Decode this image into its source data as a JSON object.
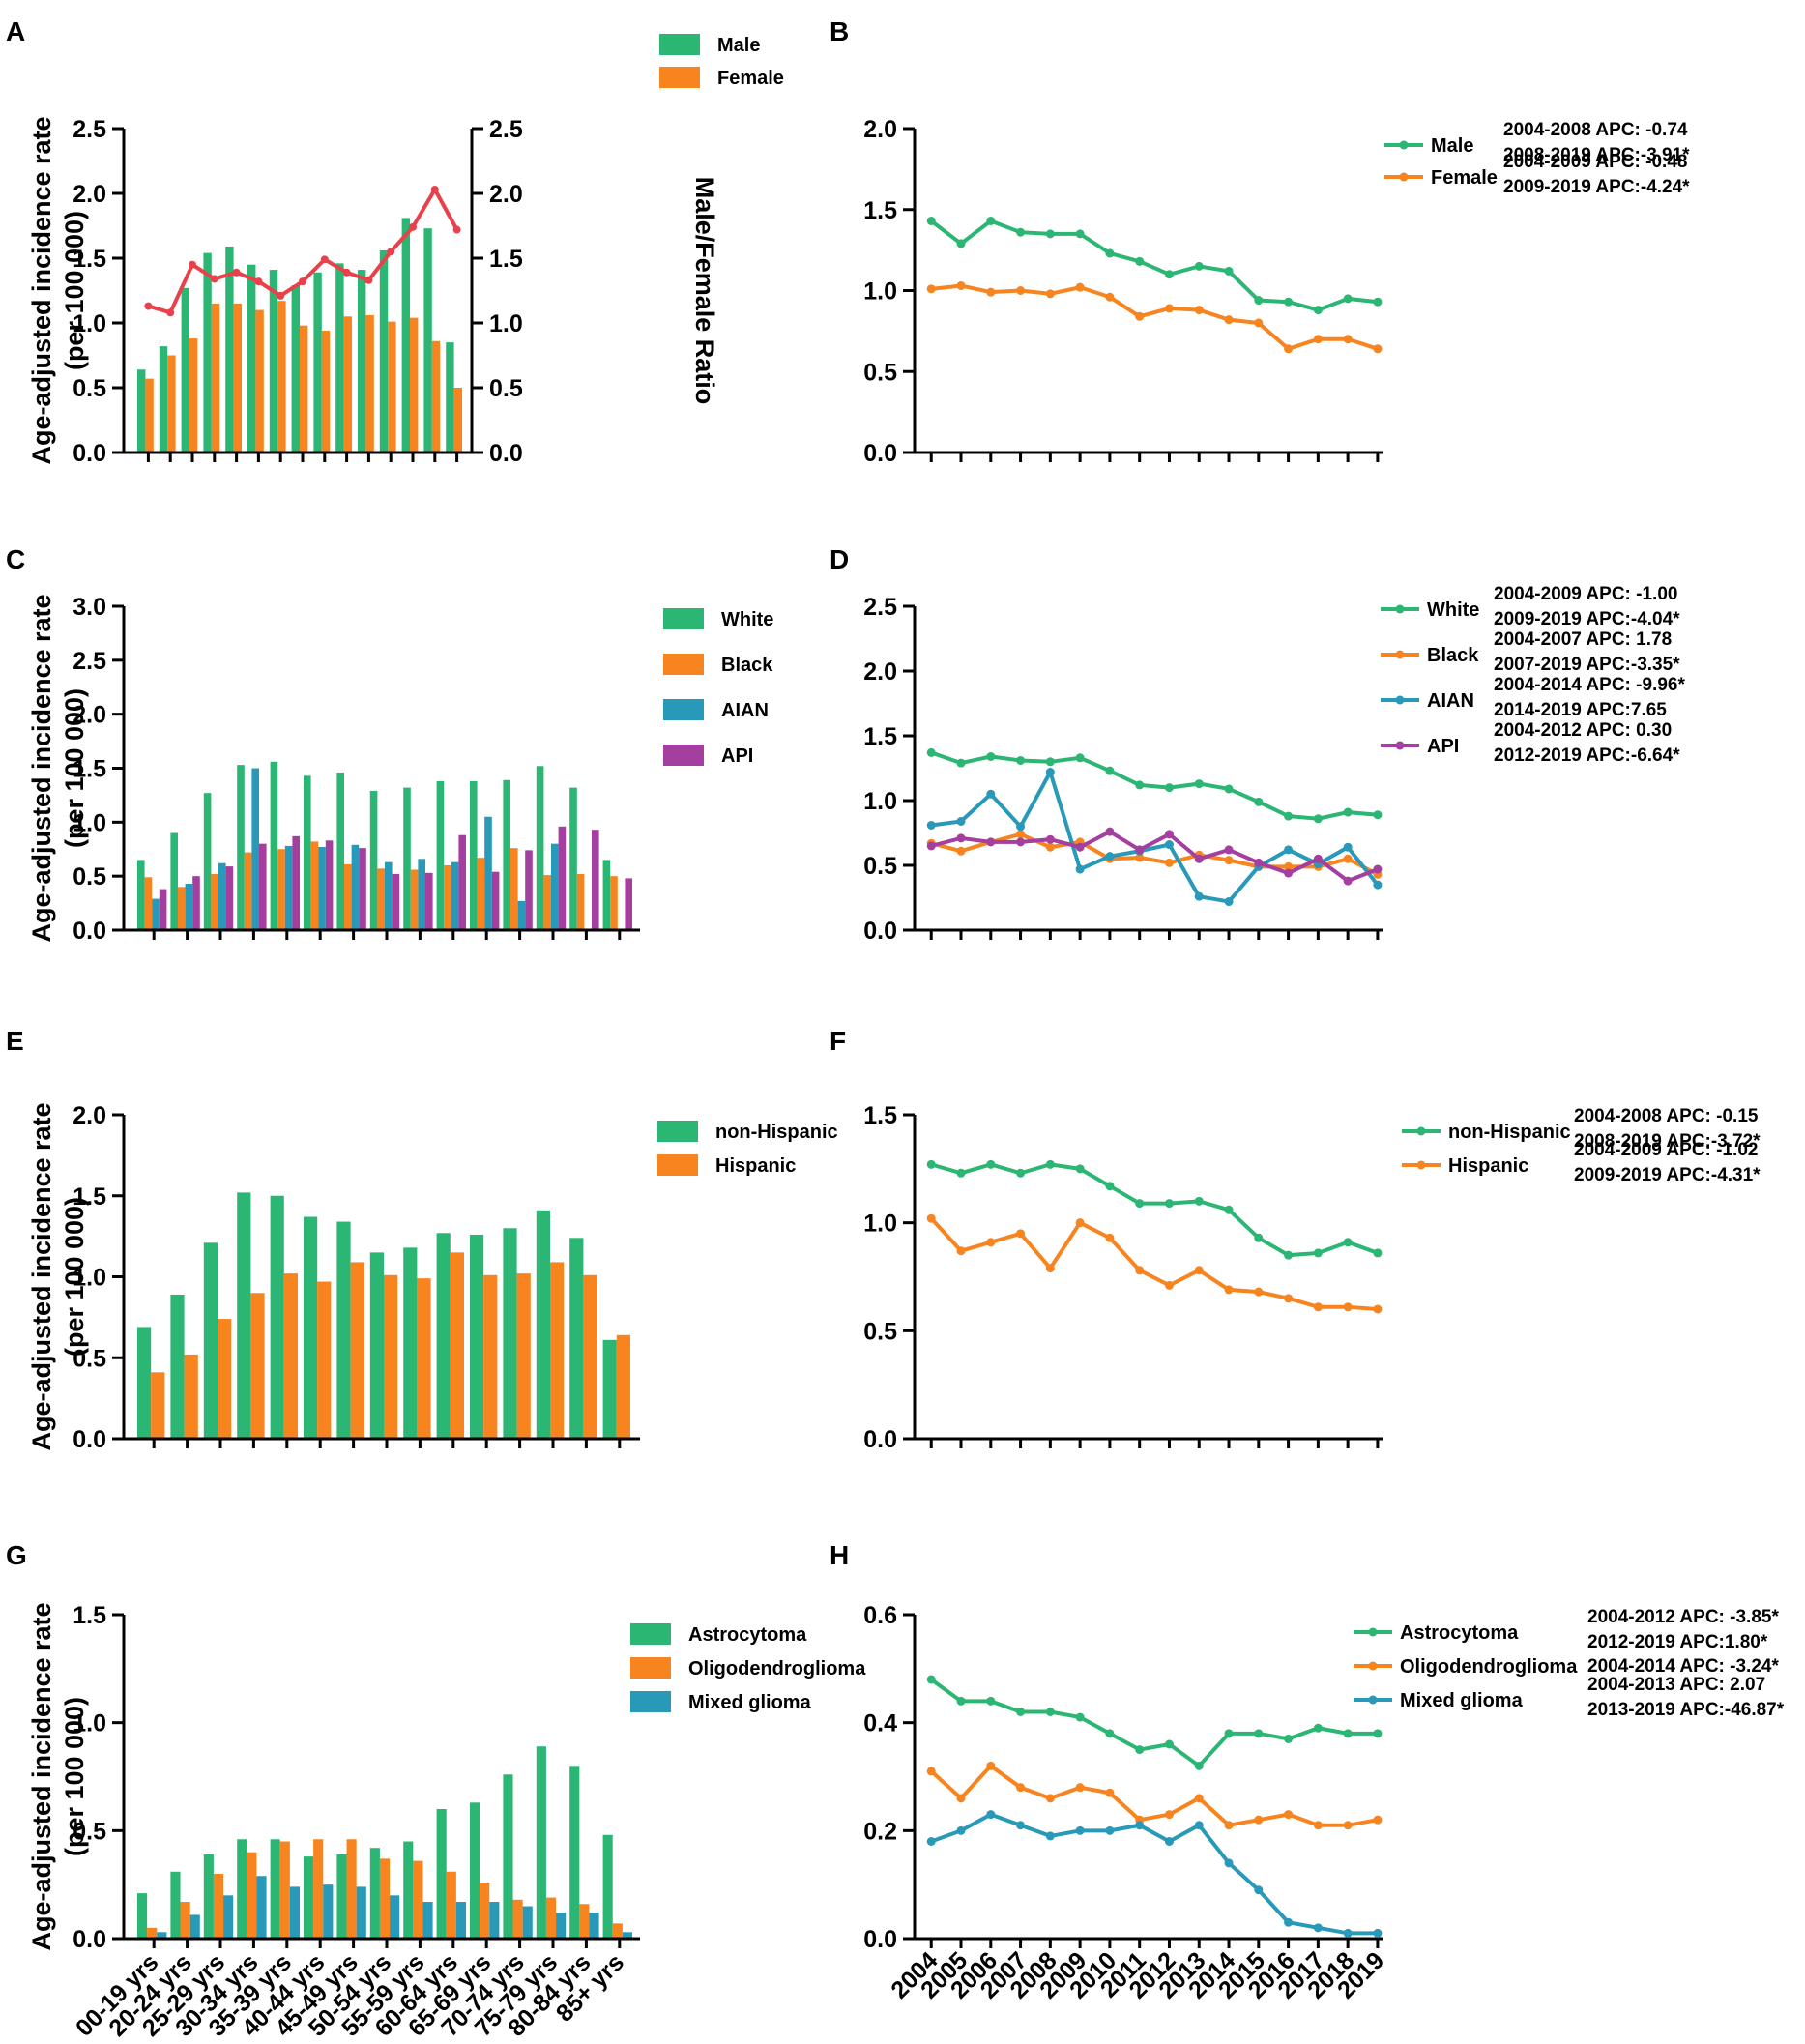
{
  "palette": {
    "green": "#2BB673",
    "orange": "#F7841E",
    "teal": "#2899B8",
    "purple": "#A53F9F",
    "red": "#E8414B",
    "axis": "#000000"
  },
  "age_groups": [
    "00-19 yrs",
    "20-24 yrs",
    "25-29 yrs",
    "30-34 yrs",
    "35-39 yrs",
    "40-44 yrs",
    "45-49 yrs",
    "50-54 yrs",
    "55-59 yrs",
    "60-64 yrs",
    "65-69 yrs",
    "70-74 yrs",
    "75-79 yrs",
    "80-84 yrs",
    "85+ yrs"
  ],
  "years": [
    "2004",
    "2005",
    "2006",
    "2007",
    "2008",
    "2009",
    "2010",
    "2011",
    "2012",
    "2013",
    "2014",
    "2015",
    "2016",
    "2017",
    "2018",
    "2019"
  ],
  "chart_data": [
    {
      "panel": "A",
      "type": "bar",
      "ylabel": "Age-adjusted incidence rate (per 100 000)",
      "ylabel_lines": [
        "Age-adjusted incidence rate",
        "(per 100 000)"
      ],
      "ylim": [
        0,
        2.5
      ],
      "yticks": [
        "0.0",
        "0.5",
        "1.0",
        "1.5",
        "2.0",
        "2.5"
      ],
      "y2label": "Male/Female Ratio",
      "y2lim": [
        0,
        2.5
      ],
      "y2ticks": [
        "0.0",
        "0.5",
        "1.0",
        "1.5",
        "2.0",
        "2.5"
      ],
      "series": [
        {
          "name": "Male",
          "color": "#2BB673",
          "values": [
            0.64,
            0.82,
            1.27,
            1.54,
            1.59,
            1.45,
            1.41,
            1.29,
            1.39,
            1.46,
            1.41,
            1.56,
            1.81,
            1.73,
            0.85
          ]
        },
        {
          "name": "Female",
          "color": "#F7841E",
          "values": [
            0.57,
            0.75,
            0.88,
            1.15,
            1.15,
            1.1,
            1.17,
            0.98,
            0.94,
            1.05,
            1.06,
            1.01,
            1.04,
            0.86,
            0.5
          ]
        }
      ],
      "ratio": {
        "name": "Male/Female Ratio",
        "color": "#E8414B",
        "values": [
          1.13,
          1.08,
          1.45,
          1.34,
          1.39,
          1.32,
          1.21,
          1.32,
          1.49,
          1.39,
          1.33,
          1.55,
          1.74,
          2.03,
          1.72
        ]
      }
    },
    {
      "panel": "B",
      "type": "line",
      "ylim": [
        0,
        2.0
      ],
      "yticks": [
        "0.0",
        "0.5",
        "1.0",
        "1.5",
        "2.0"
      ],
      "series": [
        {
          "name": "Male",
          "color": "#2BB673",
          "apc": [
            "2004-2008 APC: -0.74",
            "2008-2019 APC:-3.91*"
          ],
          "values": [
            1.43,
            1.29,
            1.43,
            1.36,
            1.35,
            1.35,
            1.23,
            1.18,
            1.1,
            1.15,
            1.12,
            0.94,
            0.93,
            0.88,
            0.95,
            0.93
          ]
        },
        {
          "name": "Female",
          "color": "#F7841E",
          "apc": [
            "2004-2009 APC: -0.48",
            "2009-2019 APC:-4.24*"
          ],
          "values": [
            1.01,
            1.03,
            0.99,
            1.0,
            0.98,
            1.02,
            0.96,
            0.84,
            0.89,
            0.88,
            0.82,
            0.8,
            0.64,
            0.7,
            0.7,
            0.64
          ]
        }
      ]
    },
    {
      "panel": "C",
      "type": "bar",
      "ylabel_lines": [
        "Age-adjusted incidence rate",
        "(per 100 000)"
      ],
      "ylim": [
        0,
        3.0
      ],
      "yticks": [
        "0.0",
        "0.5",
        "1.0",
        "1.5",
        "2.0",
        "2.5",
        "3.0"
      ],
      "series": [
        {
          "name": "White",
          "color": "#2BB673",
          "values": [
            0.65,
            0.9,
            1.27,
            1.53,
            1.56,
            1.43,
            1.46,
            1.29,
            1.32,
            1.38,
            1.38,
            1.39,
            1.52,
            1.32,
            0.65
          ]
        },
        {
          "name": "Black",
          "color": "#F7841E",
          "values": [
            0.49,
            0.4,
            0.52,
            0.72,
            0.75,
            0.82,
            0.61,
            0.57,
            0.56,
            0.6,
            0.67,
            0.76,
            0.51,
            0.52,
            0.5
          ]
        },
        {
          "name": "AIAN",
          "color": "#2899B8",
          "values": [
            0.29,
            0.43,
            0.62,
            1.5,
            0.78,
            0.77,
            0.79,
            0.63,
            0.66,
            0.63,
            1.05,
            0.27,
            0.8,
            0.0,
            0.0
          ]
        },
        {
          "name": "API",
          "color": "#A53F9F",
          "values": [
            0.38,
            0.5,
            0.59,
            0.8,
            0.87,
            0.83,
            0.76,
            0.52,
            0.53,
            0.88,
            0.54,
            0.74,
            0.96,
            0.93,
            0.48
          ]
        }
      ]
    },
    {
      "panel": "D",
      "type": "line",
      "ylim": [
        0,
        2.5
      ],
      "yticks": [
        "0.0",
        "0.5",
        "1.0",
        "1.5",
        "2.0",
        "2.5"
      ],
      "series": [
        {
          "name": "White",
          "color": "#2BB673",
          "apc": [
            "2004-2009 APC: -1.00",
            "2009-2019 APC:-4.04*"
          ],
          "values": [
            1.37,
            1.29,
            1.34,
            1.31,
            1.3,
            1.33,
            1.23,
            1.12,
            1.1,
            1.13,
            1.09,
            0.99,
            0.88,
            0.86,
            0.91,
            0.89
          ]
        },
        {
          "name": "Black",
          "color": "#F7841E",
          "apc": [
            "2004-2007 APC: 1.78",
            "2007-2019 APC:-3.35*"
          ],
          "values": [
            0.67,
            0.61,
            0.68,
            0.74,
            0.64,
            0.68,
            0.55,
            0.56,
            0.52,
            0.58,
            0.54,
            0.49,
            0.49,
            0.49,
            0.55,
            0.43
          ]
        },
        {
          "name": "AIAN",
          "color": "#2899B8",
          "apc": [
            "2004-2014 APC: -9.96*",
            "2014-2019 APC:7.65"
          ],
          "values": [
            0.81,
            0.84,
            1.05,
            0.8,
            1.22,
            0.47,
            0.57,
            0.61,
            0.66,
            0.26,
            0.22,
            0.49,
            0.62,
            0.51,
            0.64,
            0.35
          ]
        },
        {
          "name": "API",
          "color": "#A53F9F",
          "apc": [
            "2004-2012 APC: 0.30",
            "2012-2019 APC:-6.64*"
          ],
          "values": [
            0.65,
            0.71,
            0.68,
            0.68,
            0.7,
            0.64,
            0.76,
            0.62,
            0.74,
            0.55,
            0.62,
            0.52,
            0.44,
            0.55,
            0.38,
            0.47
          ]
        }
      ]
    },
    {
      "panel": "E",
      "type": "bar",
      "ylabel_lines": [
        "Age-adjusted incidence rate",
        "(per 100 000)"
      ],
      "ylim": [
        0,
        2.0
      ],
      "yticks": [
        "0.0",
        "0.5",
        "1.0",
        "1.5",
        "2.0"
      ],
      "series": [
        {
          "name": "non-Hispanic",
          "color": "#2BB673",
          "values": [
            0.69,
            0.89,
            1.21,
            1.52,
            1.5,
            1.37,
            1.34,
            1.15,
            1.18,
            1.27,
            1.26,
            1.3,
            1.41,
            1.24,
            0.61
          ]
        },
        {
          "name": "Hispanic",
          "color": "#F7841E",
          "values": [
            0.41,
            0.52,
            0.74,
            0.9,
            1.02,
            0.97,
            1.09,
            1.01,
            0.99,
            1.15,
            1.01,
            1.02,
            1.09,
            1.01,
            0.64
          ]
        }
      ]
    },
    {
      "panel": "F",
      "type": "line",
      "ylim": [
        0,
        1.5
      ],
      "yticks": [
        "0.0",
        "0.5",
        "1.0",
        "1.5"
      ],
      "series": [
        {
          "name": "non-Hispanic",
          "color": "#2BB673",
          "apc": [
            "2004-2008 APC: -0.15",
            "2008-2019 APC:-3.72*"
          ],
          "values": [
            1.27,
            1.23,
            1.27,
            1.23,
            1.27,
            1.25,
            1.17,
            1.09,
            1.09,
            1.1,
            1.06,
            0.93,
            0.85,
            0.86,
            0.91,
            0.86
          ]
        },
        {
          "name": "Hispanic",
          "color": "#F7841E",
          "apc": [
            "2004-2009 APC: -1.02",
            "2009-2019 APC:-4.31*"
          ],
          "values": [
            1.02,
            0.87,
            0.91,
            0.95,
            0.79,
            1.0,
            0.93,
            0.78,
            0.71,
            0.78,
            0.69,
            0.68,
            0.65,
            0.61,
            0.61,
            0.6
          ]
        }
      ]
    },
    {
      "panel": "G",
      "type": "bar",
      "ylabel_lines": [
        "Age-adjusted incidence rate",
        "(per 100 000)"
      ],
      "ylim": [
        0,
        1.5
      ],
      "yticks": [
        "0.0",
        "0.5",
        "1.0",
        "1.5"
      ],
      "series": [
        {
          "name": "Astrocytoma",
          "color": "#2BB673",
          "values": [
            0.21,
            0.31,
            0.39,
            0.46,
            0.46,
            0.38,
            0.39,
            0.42,
            0.45,
            0.6,
            0.63,
            0.76,
            0.89,
            0.8,
            0.48
          ]
        },
        {
          "name": "Oligodendroglioma",
          "color": "#F7841E",
          "values": [
            0.05,
            0.17,
            0.3,
            0.4,
            0.45,
            0.46,
            0.46,
            0.37,
            0.36,
            0.31,
            0.26,
            0.18,
            0.19,
            0.16,
            0.07
          ]
        },
        {
          "name": "Mixed glioma",
          "color": "#2899B8",
          "values": [
            0.03,
            0.11,
            0.2,
            0.29,
            0.24,
            0.25,
            0.24,
            0.2,
            0.17,
            0.17,
            0.17,
            0.15,
            0.12,
            0.12,
            0.03
          ]
        }
      ]
    },
    {
      "panel": "H",
      "type": "line",
      "ylim": [
        0,
        0.6
      ],
      "yticks": [
        "0.0",
        "0.2",
        "0.4",
        "0.6"
      ],
      "series": [
        {
          "name": "Astrocytoma",
          "color": "#2BB673",
          "apc": [
            "2004-2012 APC: -3.85*",
            "2012-2019 APC:1.80*"
          ],
          "values": [
            0.48,
            0.44,
            0.44,
            0.42,
            0.42,
            0.41,
            0.38,
            0.35,
            0.36,
            0.32,
            0.38,
            0.38,
            0.37,
            0.39,
            0.38,
            0.38
          ]
        },
        {
          "name": "Oligodendroglioma",
          "color": "#F7841E",
          "apc": [
            "2004-2014 APC: -3.24*"
          ],
          "values": [
            0.31,
            0.26,
            0.32,
            0.28,
            0.26,
            0.28,
            0.27,
            0.22,
            0.23,
            0.26,
            0.21,
            0.22,
            0.23,
            0.21,
            0.21,
            0.22
          ]
        },
        {
          "name": "Mixed glioma",
          "color": "#2899B8",
          "apc": [
            "2004-2013 APC: 2.07",
            "2013-2019 APC:-46.87*"
          ],
          "values": [
            0.18,
            0.2,
            0.23,
            0.21,
            0.19,
            0.2,
            0.2,
            0.21,
            0.18,
            0.21,
            0.14,
            0.09,
            0.03,
            0.02,
            0.01,
            0.01
          ]
        }
      ]
    }
  ]
}
